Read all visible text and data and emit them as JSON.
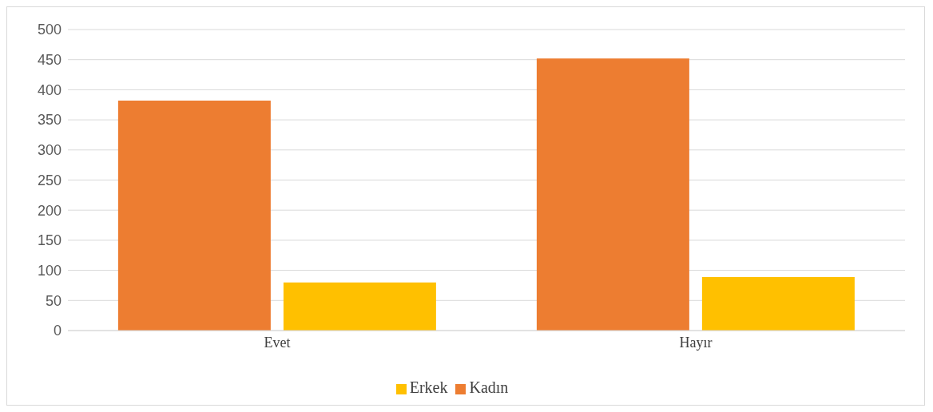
{
  "chart_data": {
    "type": "bar",
    "categories": [
      "Evet",
      "Hayır"
    ],
    "series": [
      {
        "name": "Kadın",
        "color": "#ed7d31",
        "values": [
          382,
          452
        ]
      },
      {
        "name": "Erkek",
        "color": "#ffc000",
        "values": [
          80,
          89
        ]
      }
    ],
    "ylim": [
      0,
      500
    ],
    "yticks": [
      0,
      50,
      100,
      150,
      200,
      250,
      300,
      350,
      400,
      450,
      500
    ],
    "grid": "y",
    "legend": "bottom"
  }
}
